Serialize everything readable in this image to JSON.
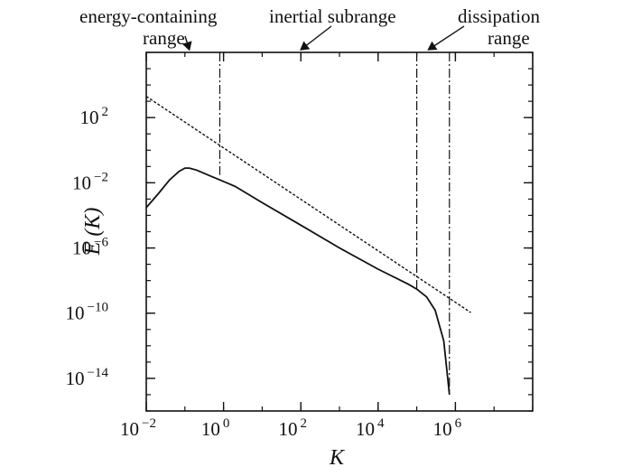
{
  "chart_data": {
    "type": "line",
    "xlabel": "K",
    "ylabel": "E (K)",
    "x_scale": "log",
    "y_scale": "log",
    "xlim": [
      0.01,
      100000000
    ],
    "ylim": [
      1e-16,
      1000000.0
    ],
    "x_ticks": [
      {
        "value": 0.01,
        "base": "10",
        "exp": "−2"
      },
      {
        "value": 1,
        "base": "10",
        "exp": "0"
      },
      {
        "value": 100,
        "base": "10",
        "exp": "2"
      },
      {
        "value": 10000,
        "base": "10",
        "exp": "4"
      },
      {
        "value": 1000000,
        "base": "10",
        "exp": "6"
      }
    ],
    "y_ticks": [
      {
        "value": 100,
        "base": "10",
        "exp": "2"
      },
      {
        "value": 0.01,
        "base": "10",
        "exp": "−2"
      },
      {
        "value": 1e-06,
        "base": "10",
        "exp": "−6"
      },
      {
        "value": 1e-10,
        "base": "10",
        "exp": "−10"
      },
      {
        "value": 1e-14,
        "base": "10",
        "exp": "−14"
      }
    ],
    "series": [
      {
        "style": "solid",
        "x": [
          0.01,
          0.02,
          0.04,
          0.07,
          0.1,
          0.13,
          0.2,
          0.4,
          0.8,
          2,
          10,
          100,
          1000,
          10000,
          60000,
          100000,
          180000,
          300000,
          500000,
          700000
        ],
        "y": [
          0.0003,
          0.002,
          0.015,
          0.05,
          0.08,
          0.08,
          0.06,
          0.03,
          0.015,
          0.006,
          0.0006,
          2.5e-05,
          1e-06,
          5e-08,
          6e-09,
          3e-09,
          1e-09,
          1.5e-10,
          2e-12,
          1e-15
        ]
      },
      {
        "style": "dotted",
        "x": [
          0.01,
          2500000
        ],
        "y": [
          2000,
          1.1e-10
        ]
      }
    ],
    "vertical_lines": [
      {
        "x": 0.8,
        "y_from": 0.03,
        "style": "dash-dot"
      },
      {
        "x": 100000,
        "y_from": 3e-09,
        "style": "dash-dot"
      },
      {
        "x": 700000,
        "y_from": 1e-15,
        "style": "dash-dot"
      }
    ],
    "annotations": [
      {
        "lines": [
          "energy-containing",
          "range"
        ],
        "arrow_at_x": 0.13
      },
      {
        "lines": [
          "inertial subrange"
        ],
        "arrow_at_x": 100
      },
      {
        "lines": [
          "dissipation",
          "range"
        ],
        "arrow_at_x": 200000
      }
    ],
    "grid": false,
    "legend": "none"
  }
}
